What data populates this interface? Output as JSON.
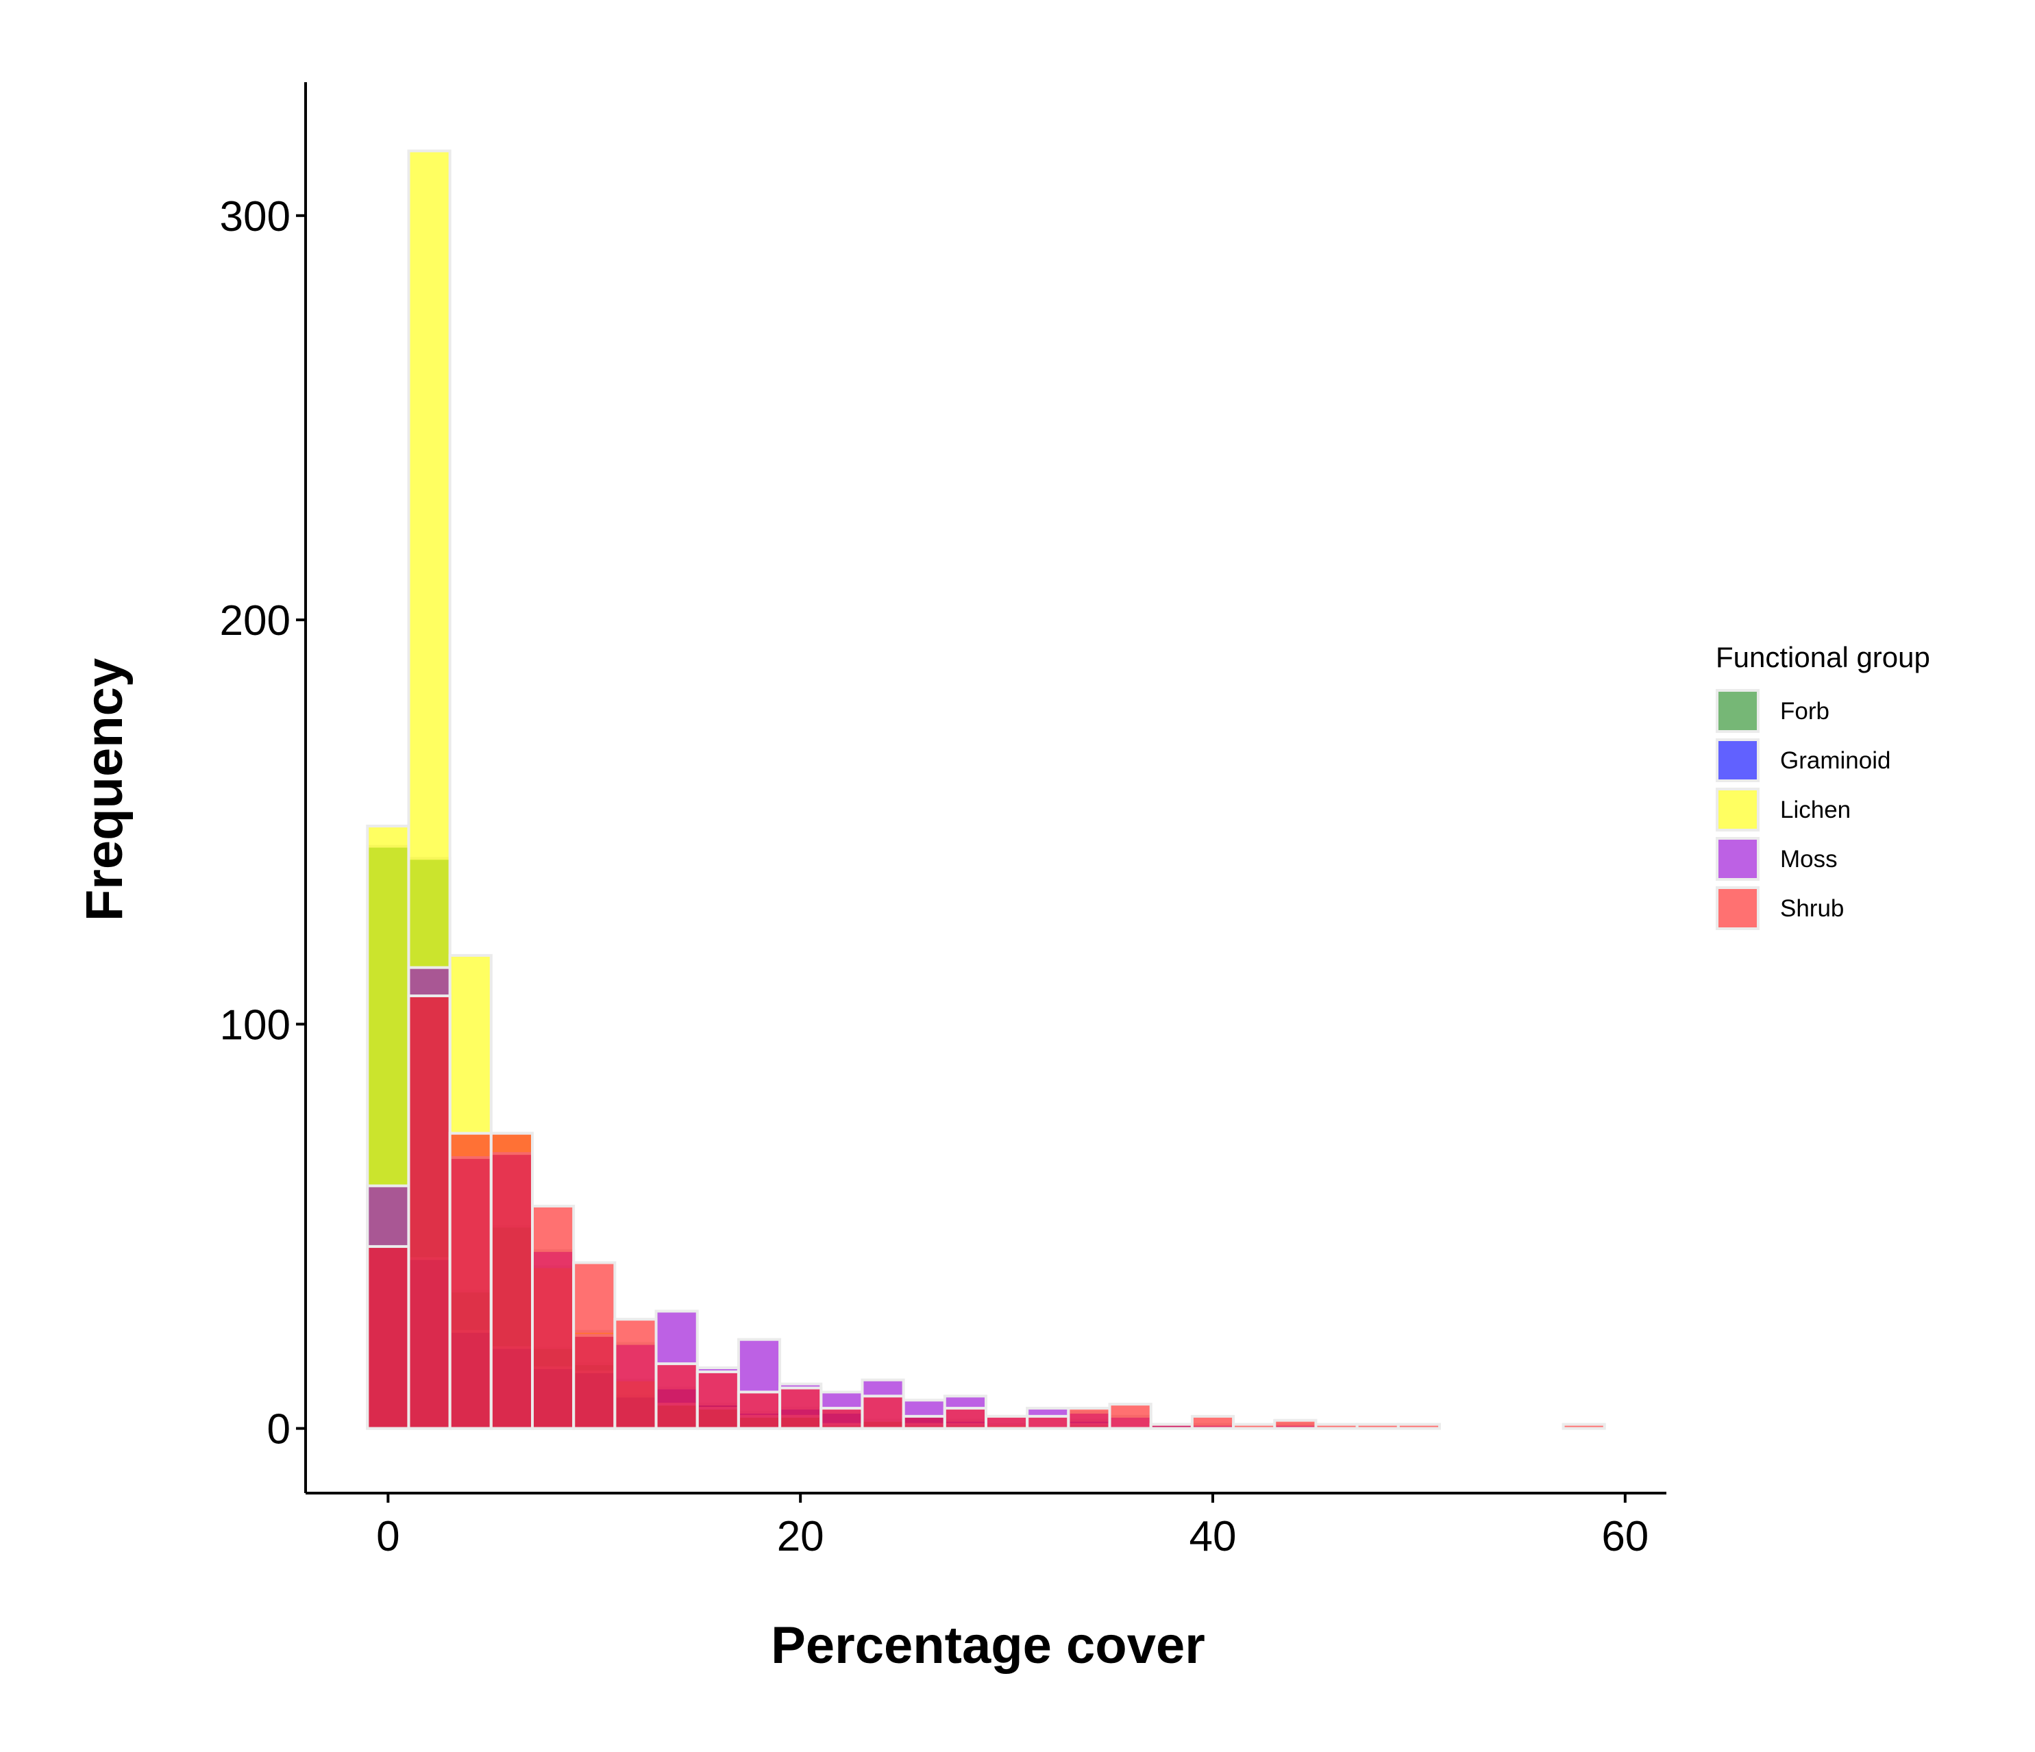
{
  "chart_data": {
    "type": "bar",
    "subtype": "overlaid-histogram",
    "title": "",
    "xlabel": "Percentage cover",
    "ylabel": "Frequency",
    "xlim": [
      -4,
      62
    ],
    "ylim": [
      -16,
      333
    ],
    "x_ticks": [
      0,
      20,
      40,
      60
    ],
    "y_ticks": [
      0,
      100,
      200,
      300
    ],
    "grid": false,
    "bin_width": 2,
    "bin_start": -1,
    "legend": {
      "title": "Functional group",
      "placement": "right",
      "entries": [
        {
          "label": "Forb",
          "color": "#228B22"
        },
        {
          "label": "Graminoid",
          "color": "#0000FF"
        },
        {
          "label": "Lichen",
          "color": "#FFFF00"
        },
        {
          "label": "Moss",
          "color": "#9400D3"
        },
        {
          "label": "Shrub",
          "color": "#FF1A1A"
        }
      ]
    },
    "series": [
      {
        "name": "Forb",
        "color": "#228B22",
        "values": [
          144,
          141,
          34,
          50,
          20,
          16,
          8,
          6,
          6,
          3,
          3,
          1,
          0,
          1,
          1,
          0,
          0,
          0,
          0,
          0,
          0,
          0,
          0,
          0,
          0,
          0,
          0,
          0,
          0,
          0
        ]
      },
      {
        "name": "Graminoid",
        "color": "#0000FF",
        "values": [
          45,
          42,
          24,
          20,
          15,
          14,
          8,
          10,
          6,
          4,
          5,
          4,
          2,
          3,
          2,
          0,
          0,
          2,
          0,
          1,
          0,
          0,
          0,
          0,
          0,
          0,
          0,
          0,
          0,
          0
        ]
      },
      {
        "name": "Lichen",
        "color": "#FFFF00",
        "values": [
          149,
          316,
          117,
          73,
          40,
          24,
          12,
          6,
          5,
          3,
          3,
          1,
          2,
          1,
          1,
          1,
          0,
          1,
          0,
          0,
          0,
          0,
          0,
          0,
          0,
          0,
          0,
          0,
          0,
          0
        ]
      },
      {
        "name": "Moss",
        "color": "#9400D3",
        "values": [
          60,
          114,
          67,
          68,
          44,
          23,
          21,
          29,
          15,
          22,
          11,
          9,
          12,
          7,
          8,
          3,
          5,
          4,
          3,
          1,
          1,
          0,
          1,
          0,
          0,
          0,
          0,
          0,
          0,
          0
        ]
      },
      {
        "name": "Shrub",
        "color": "#FF1A1A",
        "values": [
          45,
          107,
          73,
          73,
          55,
          41,
          27,
          16,
          14,
          9,
          10,
          5,
          8,
          3,
          5,
          3,
          3,
          5,
          6,
          1,
          3,
          1,
          2,
          1,
          1,
          1,
          0,
          0,
          0,
          1
        ]
      }
    ]
  }
}
